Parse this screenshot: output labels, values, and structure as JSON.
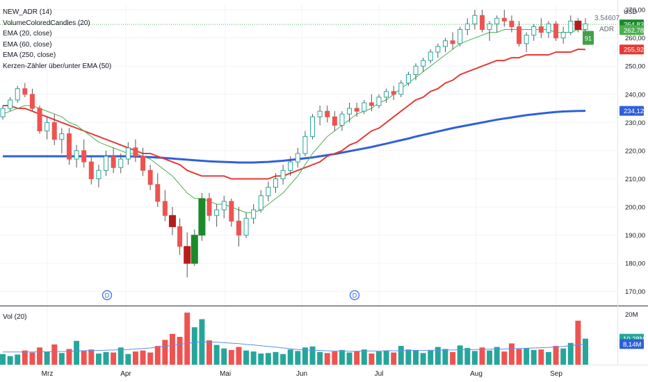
{
  "legend": {
    "items": [
      "NEW_ADR (14)",
      "VolumeColoredCandles (20)",
      "EMA (20, close)",
      "EMA (60, close)",
      "EMA (250, close)",
      "Kerzen-Zähler über/unter EMA (50)"
    ],
    "volume_label": "Vol (20)"
  },
  "currency": "USD",
  "adr": {
    "value": "3.54607",
    "label": "ADR"
  },
  "counter_label": "91",
  "dividend_marker": "D",
  "colors": {
    "up": "#26a69a",
    "down": "#ef5350",
    "up_strong": "#1b8a2a",
    "down_strong": "#b71c1c",
    "ema20": "#4caf50",
    "ema60": "#e53935",
    "ema250": "#2f5fd9",
    "vol_ma": "#5b8def"
  },
  "chart_data": {
    "type": "candlestick",
    "price_axis": {
      "min": 165,
      "max": 272,
      "ticks": [
        170,
        180,
        190,
        200,
        210,
        220,
        230,
        240,
        250,
        260,
        270
      ]
    },
    "price_tick_labels": [
      "170,00",
      "180,00",
      "190,00",
      "200,00",
      "210,00",
      "220,00",
      "230,00",
      "240,00",
      "250,00",
      "260,00",
      "270,00"
    ],
    "x_labels": [
      "Mrz",
      "Apr",
      "Mai",
      "Jun",
      "Jul",
      "Aug",
      "Sep"
    ],
    "last_values": [
      {
        "label": "264,83",
        "value": 264.83,
        "color": "#1b8a2a"
      },
      {
        "label": "262,78",
        "value": 262.78,
        "color": "#4caf50"
      },
      {
        "label": "255,92",
        "value": 255.92,
        "color": "#e53935"
      },
      {
        "label": "234,12",
        "value": 234.12,
        "color": "#2f5fd9"
      }
    ],
    "volume_axis": {
      "max": 22,
      "tick_label": "20M",
      "tick_value": 20
    },
    "volume_last_values": [
      {
        "label": "10,28M",
        "value": 10.28,
        "color": "#26a69a"
      },
      {
        "label": "8,14M",
        "value": 8.14,
        "color": "#2f5fd9"
      }
    ],
    "ohlc": [
      [
        232,
        236,
        231,
        235
      ],
      [
        235,
        239,
        234,
        238
      ],
      [
        238,
        243,
        237,
        242
      ],
      [
        242,
        244,
        239,
        240
      ],
      [
        240,
        242,
        234,
        235
      ],
      [
        235,
        236,
        226,
        227
      ],
      [
        227,
        232,
        224,
        230
      ],
      [
        230,
        233,
        222,
        224
      ],
      [
        224,
        228,
        219,
        226
      ],
      [
        226,
        228,
        215,
        217
      ],
      [
        217,
        222,
        214,
        220
      ],
      [
        220,
        224,
        214,
        216
      ],
      [
        216,
        218,
        208,
        210
      ],
      [
        210,
        215,
        207,
        213
      ],
      [
        213,
        220,
        211,
        218
      ],
      [
        218,
        221,
        212,
        214
      ],
      [
        214,
        219,
        212,
        217
      ],
      [
        217,
        223,
        215,
        221
      ],
      [
        221,
        224,
        216,
        218
      ],
      [
        218,
        221,
        211,
        213
      ],
      [
        213,
        215,
        206,
        208
      ],
      [
        208,
        212,
        200,
        202
      ],
      [
        202,
        206,
        195,
        197
      ],
      [
        197,
        200,
        190,
        193
      ],
      [
        193,
        196,
        183,
        186
      ],
      [
        186,
        191,
        175,
        180
      ],
      [
        180,
        192,
        179,
        190
      ],
      [
        190,
        205,
        188,
        203
      ],
      [
        203,
        205,
        195,
        197
      ],
      [
        197,
        201,
        193,
        199
      ],
      [
        199,
        204,
        196,
        202
      ],
      [
        202,
        203,
        193,
        195
      ],
      [
        195,
        200,
        186,
        190
      ],
      [
        190,
        198,
        189,
        196
      ],
      [
        196,
        201,
        194,
        199
      ],
      [
        199,
        206,
        198,
        204
      ],
      [
        204,
        209,
        202,
        207
      ],
      [
        207,
        212,
        205,
        210
      ],
      [
        210,
        215,
        208,
        213
      ],
      [
        213,
        218,
        211,
        216
      ],
      [
        216,
        221,
        214,
        219
      ],
      [
        219,
        227,
        218,
        225
      ],
      [
        225,
        233,
        224,
        232
      ],
      [
        232,
        236,
        229,
        234
      ],
      [
        234,
        236,
        230,
        232
      ],
      [
        232,
        234,
        227,
        229
      ],
      [
        229,
        234,
        227,
        233
      ],
      [
        233,
        237,
        230,
        235
      ],
      [
        235,
        237,
        232,
        234
      ],
      [
        234,
        238,
        233,
        237
      ],
      [
        237,
        240,
        234,
        236
      ],
      [
        236,
        240,
        235,
        239
      ],
      [
        239,
        242,
        237,
        241
      ],
      [
        241,
        243,
        238,
        240
      ],
      [
        240,
        245,
        239,
        244
      ],
      [
        244,
        248,
        243,
        247
      ],
      [
        247,
        251,
        245,
        250
      ],
      [
        250,
        253,
        248,
        252
      ],
      [
        252,
        256,
        251,
        255
      ],
      [
        255,
        258,
        253,
        257
      ],
      [
        257,
        260,
        255,
        259
      ],
      [
        259,
        262,
        256,
        258
      ],
      [
        258,
        264,
        257,
        263
      ],
      [
        263,
        267,
        261,
        265
      ],
      [
        265,
        270,
        263,
        268
      ],
      [
        268,
        270,
        262,
        263
      ],
      [
        263,
        266,
        259,
        265
      ],
      [
        265,
        268,
        262,
        267
      ],
      [
        267,
        270,
        264,
        266
      ],
      [
        266,
        268,
        262,
        264
      ],
      [
        264,
        266,
        257,
        258
      ],
      [
        258,
        262,
        255,
        261
      ],
      [
        261,
        265,
        259,
        264
      ],
      [
        264,
        267,
        260,
        262
      ],
      [
        262,
        266,
        260,
        265
      ],
      [
        265,
        266,
        259,
        260
      ],
      [
        260,
        264,
        258,
        262
      ],
      [
        262,
        268,
        261,
        266
      ],
      [
        266,
        267,
        262,
        263
      ],
      [
        263,
        267,
        261,
        265
      ]
    ],
    "ema20": [
      233,
      234,
      235,
      236,
      236,
      235,
      234,
      233,
      232,
      230,
      229,
      227,
      225,
      223,
      222,
      221,
      220,
      219,
      219,
      218,
      217,
      215,
      213,
      211,
      208,
      205,
      203,
      203,
      202,
      201,
      201,
      200,
      199,
      198,
      198,
      199,
      201,
      203,
      205,
      208,
      211,
      215,
      219,
      222,
      225,
      227,
      229,
      231,
      233,
      234,
      235,
      237,
      238,
      240,
      242,
      244,
      246,
      248,
      250,
      252,
      254,
      256,
      258,
      259,
      260,
      261,
      262,
      262,
      263,
      263,
      263,
      263,
      263,
      263,
      263,
      262,
      262,
      262,
      263,
      262.78
    ],
    "ema60": [
      236,
      236,
      235,
      235,
      234,
      233,
      232,
      231,
      230,
      229,
      228,
      227,
      226,
      225,
      224,
      223,
      222,
      221,
      220,
      219,
      219,
      218,
      217,
      216,
      215,
      213,
      212,
      211,
      211,
      211,
      211,
      210,
      210,
      210,
      210,
      210,
      210,
      211,
      211,
      212,
      213,
      214,
      215,
      216,
      218,
      219,
      220,
      222,
      223,
      225,
      227,
      228,
      230,
      232,
      234,
      236,
      238,
      239,
      241,
      242,
      244,
      245,
      247,
      248,
      249,
      250,
      251,
      252,
      252,
      253,
      253,
      254,
      254,
      254,
      254,
      255,
      255,
      255,
      256,
      255.92
    ],
    "ema250": [
      218,
      218,
      218,
      218,
      218,
      218,
      218,
      218,
      218,
      218,
      218,
      218,
      218,
      218,
      218,
      218,
      218,
      218,
      217.9,
      217.8,
      217.7,
      217.6,
      217.4,
      217.2,
      217,
      216.8,
      216.6,
      216.4,
      216.2,
      216.1,
      216,
      215.9,
      215.8,
      215.8,
      215.8,
      215.9,
      216,
      216.2,
      216.4,
      216.7,
      217,
      217.3,
      217.6,
      218,
      218.4,
      218.8,
      219.3,
      219.8,
      220.3,
      220.8,
      221.3,
      221.9,
      222.5,
      223.1,
      223.7,
      224.3,
      225,
      225.6,
      226.2,
      226.8,
      227.4,
      228,
      228.5,
      229,
      229.5,
      230,
      230.5,
      231,
      231.4,
      231.8,
      232.2,
      232.6,
      232.9,
      233.2,
      233.5,
      233.7,
      233.9,
      234,
      234.1,
      234.12
    ],
    "volume": [
      4.2,
      3.4,
      4.0,
      5.6,
      4.8,
      6.8,
      5.2,
      8.0,
      4.6,
      6.2,
      9.4,
      5.6,
      6.0,
      4.4,
      5.0,
      4.8,
      6.8,
      4.2,
      5.2,
      5.6,
      4.8,
      7.4,
      9.8,
      12.2,
      11.0,
      20.6,
      14.8,
      18.0,
      9.6,
      7.8,
      6.4,
      5.8,
      7.0,
      5.6,
      5.2,
      4.4,
      4.6,
      5.0,
      4.2,
      6.0,
      5.4,
      6.8,
      7.2,
      5.0,
      4.6,
      5.2,
      5.8,
      4.8,
      5.4,
      6.0,
      4.4,
      5.2,
      5.6,
      4.8,
      7.4,
      6.0,
      5.8,
      4.6,
      5.6,
      7.0,
      6.2,
      5.0,
      7.6,
      6.6,
      5.4,
      6.8,
      5.6,
      7.0,
      5.2,
      8.4,
      6.2,
      6.6,
      5.8,
      6.0,
      5.0,
      7.4,
      6.4,
      8.6,
      17.4,
      10.28
    ],
    "volume_ma": [
      5.0,
      5.0,
      5.0,
      5.0,
      5.0,
      5.1,
      5.1,
      5.2,
      5.2,
      5.3,
      5.4,
      5.5,
      5.6,
      5.6,
      5.7,
      5.8,
      5.9,
      6.0,
      6.2,
      6.4,
      6.6,
      6.9,
      7.2,
      7.6,
      8.0,
      8.4,
      8.8,
      9.0,
      9.0,
      8.9,
      8.7,
      8.5,
      8.3,
      8.0,
      7.8,
      7.5,
      7.2,
      6.9,
      6.6,
      6.3,
      6.0,
      5.8,
      5.7,
      5.6,
      5.5,
      5.4,
      5.4,
      5.3,
      5.3,
      5.4,
      5.4,
      5.4,
      5.5,
      5.5,
      5.5,
      5.6,
      5.6,
      5.6,
      5.7,
      5.7,
      5.8,
      5.8,
      5.9,
      5.9,
      6.0,
      6.0,
      6.1,
      6.1,
      6.2,
      6.3,
      6.4,
      6.5,
      6.6,
      6.7,
      6.8,
      7.0,
      7.2,
      7.5,
      7.9,
      8.14
    ]
  }
}
